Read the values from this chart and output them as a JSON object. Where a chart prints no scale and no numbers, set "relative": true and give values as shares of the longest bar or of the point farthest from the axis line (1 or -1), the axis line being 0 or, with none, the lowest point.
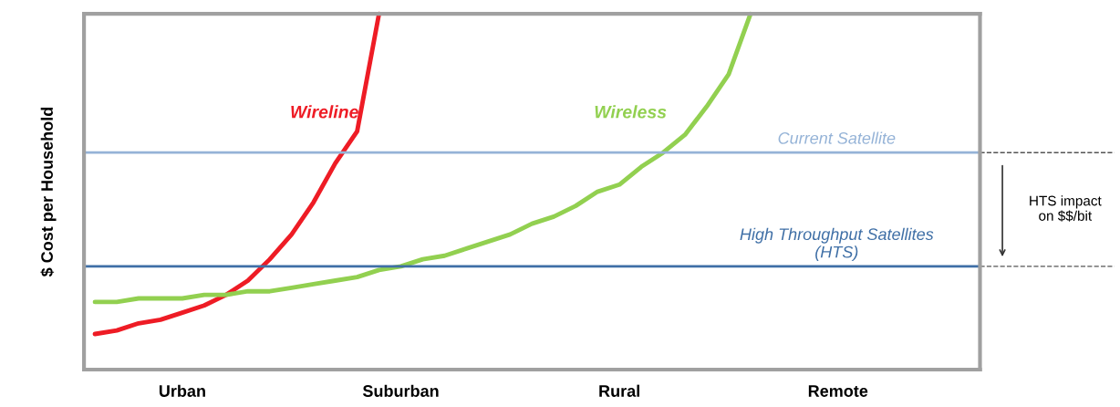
{
  "chart_data": {
    "type": "line",
    "relative": true,
    "ylabel": "$ Cost per Household",
    "categories": [
      null,
      null,
      null,
      null,
      "Urban",
      null,
      null,
      null,
      null,
      null,
      null,
      null,
      null,
      null,
      "Suburban",
      null,
      null,
      null,
      null,
      null,
      null,
      null,
      null,
      null,
      "Rural",
      null,
      null,
      null,
      null,
      null,
      null,
      null,
      null,
      null,
      "Remote",
      null,
      null,
      null,
      null,
      null,
      null
    ],
    "series": [
      {
        "name": "Wireline",
        "color": "#ee1c25",
        "values": [
          0.1,
          0.11,
          0.13,
          0.14,
          0.16,
          0.18,
          0.21,
          0.25,
          0.31,
          0.38,
          0.47,
          0.58,
          0.67,
          1.0,
          null,
          null,
          null,
          null,
          null,
          null,
          null,
          null,
          null,
          null,
          null,
          null,
          null,
          null,
          null,
          null,
          null,
          null,
          null,
          null,
          null,
          null,
          null,
          null,
          null,
          null,
          null
        ]
      },
      {
        "name": "Wireless",
        "color": "#92d050",
        "values": [
          0.19,
          0.19,
          0.2,
          0.2,
          0.2,
          0.21,
          0.21,
          0.22,
          0.22,
          0.23,
          0.24,
          0.25,
          0.26,
          0.28,
          0.29,
          0.31,
          0.32,
          0.34,
          0.36,
          0.38,
          0.41,
          0.43,
          0.46,
          0.5,
          0.52,
          0.57,
          0.61,
          0.66,
          0.74,
          0.83,
          1.0,
          null,
          null,
          null,
          null,
          null,
          null,
          null,
          null,
          null,
          null
        ]
      }
    ],
    "ref_lines": [
      {
        "axis": "y",
        "value": 0.61,
        "label": "Current Satellite",
        "color": "#95b3d7"
      },
      {
        "axis": "y",
        "value": 0.29,
        "label": "High Throughput Satellites\n(HTS)",
        "color": "#3f6fa6"
      }
    ],
    "annotations": [
      "HTS impact\non $$/bit"
    ],
    "legend": false,
    "grid": false,
    "tick_labels": "x"
  }
}
